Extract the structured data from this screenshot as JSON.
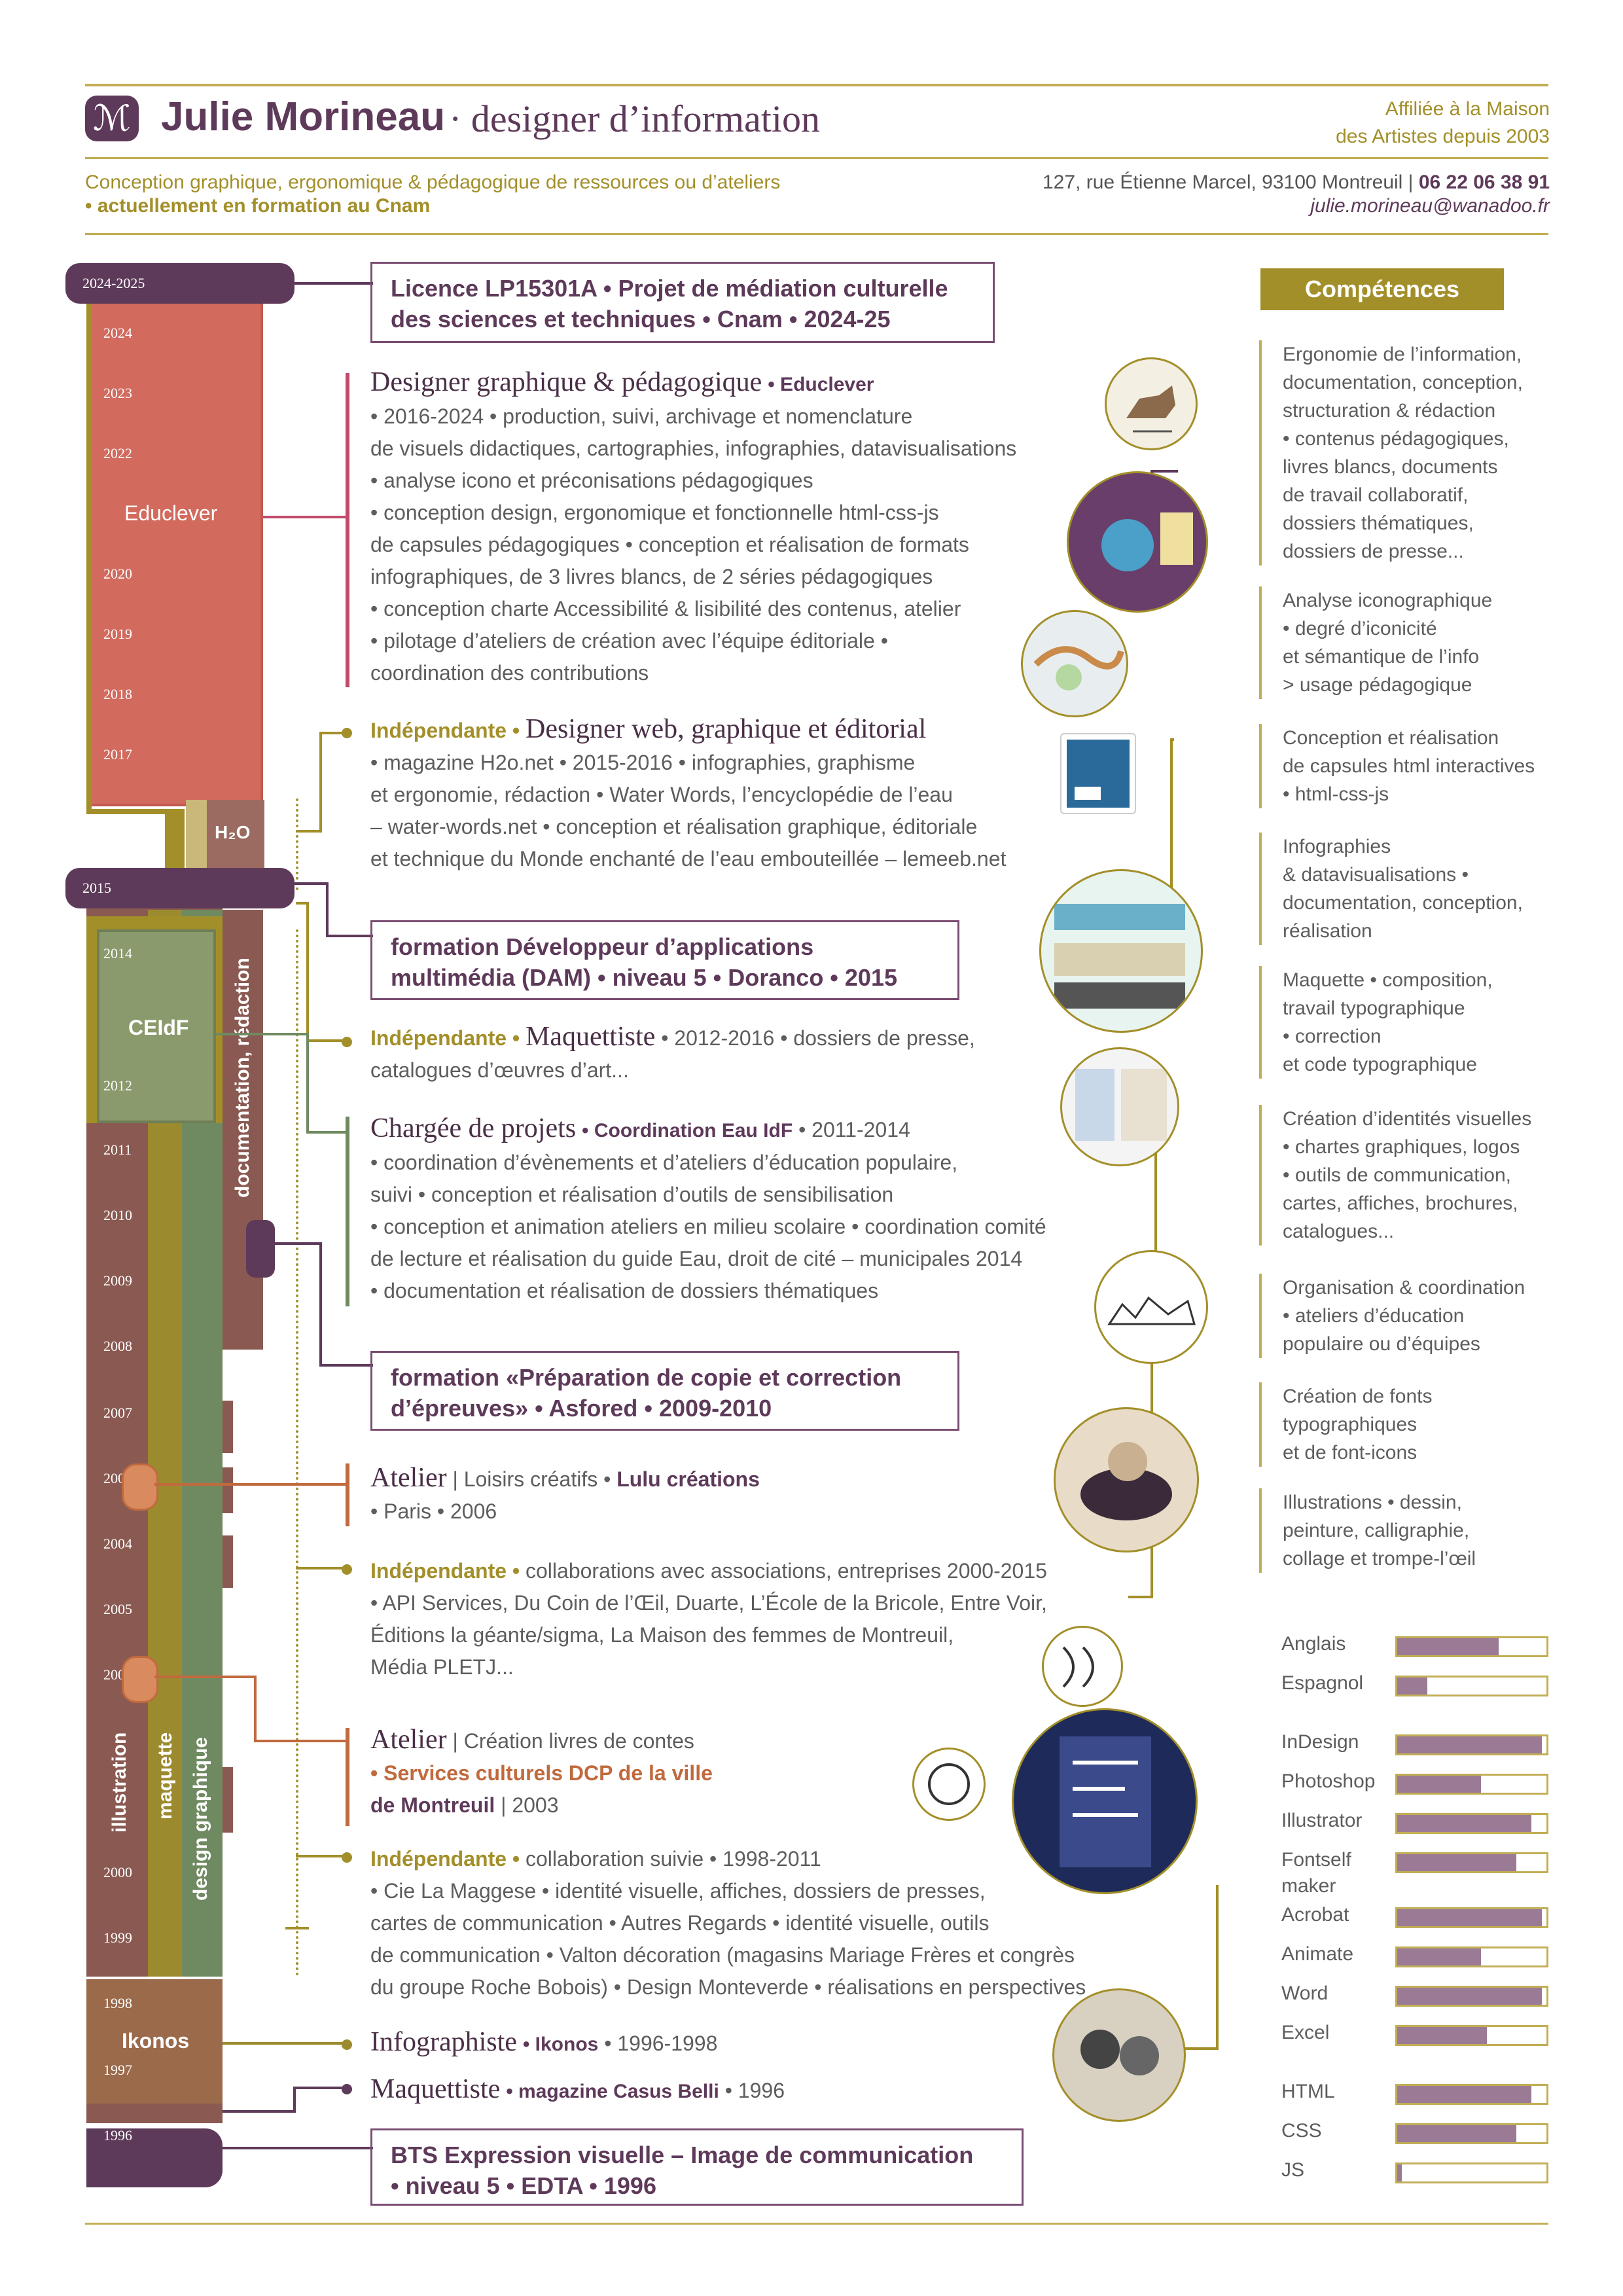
{
  "header": {
    "logo_glyph": "ℳ",
    "name": "Julie Morineau",
    "role": "· designer d’information",
    "affiliation_1": "Affiliée à la Maison",
    "affiliation_2": "des Artistes depuis 2003",
    "tagline": "Conception graphique, ergonomique & pédagogique de ressources ou d’ateliers",
    "training": "• actuellement en formation au Cnam",
    "address": "127, rue Étienne Marcel, 93100 Montreuil |",
    "phone": "06 22 06 38 91",
    "email": "julie.morineau@wanadoo.fr"
  },
  "timeline": {
    "pill_top": "2024-2025",
    "pill_mid": "2015",
    "pill_bottom": "1996",
    "years_educlever": [
      "2024",
      "2023",
      "2022",
      "2020",
      "2019",
      "2018",
      "2017"
    ],
    "years_ceidf": [
      "2014",
      "2012"
    ],
    "years_lower": [
      "2011",
      "2010",
      "2009",
      "2008",
      "2007",
      "2006",
      "2004",
      "2005",
      "2003",
      "2000",
      "1999"
    ],
    "years_ikonos": [
      "1998",
      "1997"
    ],
    "label_educlever": "Educlever",
    "label_h2o": "H₂O",
    "label_ceidf": "CEIdF",
    "label_ikonos": "Ikonos",
    "label_doc": "documentation, rédaction",
    "label_illustration": "illustration",
    "label_maquette": "maquette",
    "label_design": "design graphique"
  },
  "entries": {
    "licence_1": "Licence LP15301A • Projet de médiation culturelle",
    "licence_2": "des sciences et techniques • Cnam • 2024-25",
    "educ_title": "Designer graphique & pédagogique",
    "educ_org": "• Educlever",
    "educ_lines": [
      "• 2016-2024 • production, suivi, archivage et nomenclature",
      "de visuels didactiques, cartographies, infographies, datavisualisations",
      "• analyse icono et préconisations pédagogiques",
      "• conception design, ergonomique et fonctionnelle html-css-js",
      "de capsules pédagogiques • conception et réalisation de formats",
      "infographiques, de 3 livres blancs, de 2 séries pédagogiques",
      "• conception charte Accessibilité & lisibilité des contenus, atelier",
      "• pilotage d’ateliers de création avec l’équipe éditoriale •",
      "coordination des contributions"
    ],
    "indep1_label": "Indépendante •",
    "indep1_title": "Designer web, graphique et éditorial",
    "indep1_lines": [
      "• magazine H2o.net • 2015-2016 • infographies, graphisme",
      "et ergonomie, rédaction • Water Words, l’encyclopédie de l’eau",
      "– water-words.net • conception et réalisation graphique, éditoriale",
      "et technique du Monde enchanté de l’eau embouteillée – lemeeb.net"
    ],
    "dam_1": "formation Développeur d’applications",
    "dam_2": "multimédia (DAM) • niveau 5 • Doranco • 2015",
    "indep2_label": "Indépendante •",
    "indep2_title": "Maquettiste",
    "indep2_rest": "• 2012-2016 • dossiers de presse,",
    "indep2_line2": "catalogues d’œuvres d’art...",
    "cp_title": "Chargée de projets",
    "cp_org": "• Coordination Eau IdF",
    "cp_years": "• 2011-2014",
    "cp_lines": [
      "• coordination d’évènements et d’ateliers d’éducation populaire,",
      "suivi • conception et réalisation d’outils de sensibilisation",
      "• conception et animation ateliers en milieu scolaire • coordination comité",
      "de lecture et réalisation du guide Eau, droit de cité – municipales 2014",
      "• documentation et réalisation de dossiers thématiques"
    ],
    "asf_1": "formation «Préparation de copie et correction",
    "asf_2": "d’épreuves» • Asfored • 2009-2010",
    "at1_title": "Atelier",
    "at1_rest": "| Loisirs créatifs •",
    "at1_org": "Lulu créations",
    "at1_line2": "• Paris • 2006",
    "indep3_label": "Indépendante •",
    "indep3_rest": "collaborations avec associations, entreprises 2000-2015",
    "indep3_lines": [
      "• API Services, Du Coin de l’Œil, Duarte, L’École de la Bricole, Entre Voir,",
      "Éditions la géante/sigma, La Maison des femmes de Montreuil,",
      "Média PLETJ..."
    ],
    "at2_title": "Atelier",
    "at2_rest": "| Création livres de contes",
    "at2_org1": "• Services culturels DCP de la ville",
    "at2_org2": "de Montreuil",
    "at2_year": "| 2003",
    "indep4_label": "Indépendante •",
    "indep4_rest": "collaboration suivie • 1998-2011",
    "indep4_lines": [
      "• Cie La Maggese • identité visuelle, affiches, dossiers de presses,",
      "cartes de communication • Autres Regards • identité visuelle, outils",
      "de communication • Valton décoration (magasins Mariage Frères et congrès",
      "du groupe Roche Bobois) • Design Monteverde • réalisations en perspectives"
    ],
    "info_title": "Infographiste",
    "info_org": "• Ikonos",
    "info_years": "• 1996-1998",
    "maq_title": "Maquettiste",
    "maq_org": "• magazine Casus Belli",
    "maq_years": "• 1996",
    "bts_1": "BTS Expression visuelle – Image de communication",
    "bts_2": "• niveau 5 • EDTA • 1996"
  },
  "competences": {
    "title": "Compétences",
    "groups": [
      [
        "Ergonomie de l’information,",
        "documentation, conception,",
        "structuration & rédaction",
        "• contenus pédagogiques,",
        "livres blancs, documents",
        "de travail collaboratif,",
        "dossiers thématiques,",
        "dossiers de presse..."
      ],
      [
        "Analyse iconographique",
        "• degré d’iconicité",
        "et sémantique de l’info",
        "> usage pédagogique"
      ],
      [
        "Conception et réalisation",
        "de capsules html interactives",
        "• html-css-js"
      ],
      [
        "Infographies",
        "& datavisualisations •",
        "documentation, conception,",
        "réalisation"
      ],
      [
        "Maquette • composition,",
        "travail typographique",
        "• correction",
        "et code typographique"
      ],
      [
        "Création d’identités visuelles",
        "• chartes graphiques, logos",
        "• outils de communication,",
        "cartes, affiches, brochures,",
        "catalogues..."
      ],
      [
        "Organisation & coordination",
        "• ateliers d’éducation",
        "populaire ou d’équipes"
      ],
      [
        "Création de fonts",
        "typographiques",
        "et de font-icons"
      ],
      [
        "Illustrations • dessin,",
        "peinture, calligraphie,",
        "collage et trompe-l’œil"
      ]
    ]
  },
  "skills": [
    {
      "name": "Anglais",
      "level": 0.68
    },
    {
      "name": "Espagnol",
      "level": 0.2
    },
    {
      "name": "InDesign",
      "level": 0.97
    },
    {
      "name": "Photoshop",
      "level": 0.56
    },
    {
      "name": "Illustrator",
      "level": 0.9
    },
    {
      "name": "Fontself maker",
      "level": 0.8
    },
    {
      "name": "Acrobat",
      "level": 0.97
    },
    {
      "name": "Animate",
      "level": 0.56
    },
    {
      "name": "Word",
      "level": 0.97
    },
    {
      "name": "Excel",
      "level": 0.6
    },
    {
      "name": "HTML",
      "level": 0.9
    },
    {
      "name": "CSS",
      "level": 0.8
    },
    {
      "name": "JS",
      "level": 0.03
    }
  ],
  "colors": {
    "purple": "#5e3a5a",
    "gold": "#a38f2a",
    "educlever": "#d26a5e",
    "ceidf": "#8a9a6c",
    "lower": "#8a5a52",
    "ikonos": "#9b6a4b",
    "maquette": "#9c8a2e",
    "design": "#6f8a60",
    "bar_fill": "#9b7a96"
  }
}
